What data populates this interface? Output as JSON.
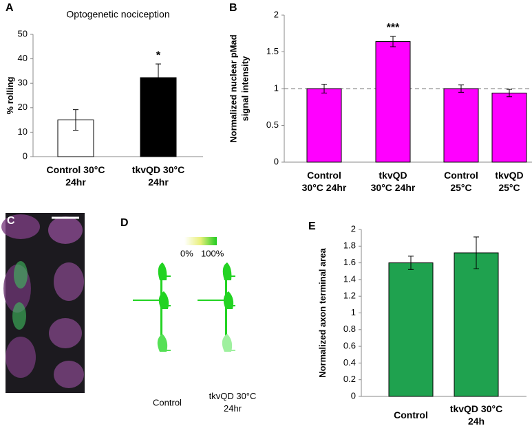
{
  "chart_data": [
    {
      "type": "bar",
      "title": "Optogenetic nociception",
      "ylabel": "% rolling",
      "categories": [
        "Control 30°C\n24hr",
        "tkvQD 30°C\n24hr"
      ],
      "values": [
        15,
        32.3
      ],
      "errors": [
        4.2,
        5.6
      ],
      "colors": [
        "#ffffff",
        "#000000"
      ],
      "significance": [
        null,
        "*"
      ],
      "ylim": [
        0,
        50
      ],
      "yticks": [
        0,
        10,
        20,
        30,
        40,
        50
      ],
      "grid": false
    },
    {
      "type": "bar",
      "ylabel": "Normalized  nuclear pMad\nsignal intensity",
      "categories": [
        "Control\n30°C 24hr",
        "tkvQD\n30°C 24hr",
        "Control\n25°C",
        "tkvQD\n25°C"
      ],
      "values": [
        1.0,
        1.64,
        1.0,
        0.94
      ],
      "errors": [
        0.06,
        0.07,
        0.05,
        0.05
      ],
      "colors": [
        "#ff00ff",
        "#ff00ff",
        "#ff00ff",
        "#ff00ff"
      ],
      "significance": [
        null,
        "***",
        null,
        null
      ],
      "reference_line": 1,
      "ylim": [
        0,
        2
      ],
      "yticks": [
        0,
        0.5,
        1,
        1.5,
        2
      ],
      "grid": false
    },
    {
      "type": "bar",
      "ylabel": "Normalized axon terminal area",
      "categories": [
        "Control",
        "tkvQD 30°C\n24h"
      ],
      "values": [
        1.6,
        1.72
      ],
      "errors": [
        0.08,
        0.19
      ],
      "colors": [
        "#1fa24f",
        "#1fa24f"
      ],
      "ylim": [
        0,
        2
      ],
      "yticks": [
        0,
        0.2,
        0.4,
        0.6,
        0.8,
        1,
        1.2,
        1.4,
        1.6,
        1.8,
        2
      ],
      "grid": false
    }
  ],
  "panel_labels": [
    "A",
    "B",
    "C",
    "D",
    "E"
  ],
  "diagram": {
    "scale_min": "0%",
    "scale_max": "100%",
    "labels": [
      "Control",
      "tkvQD 30°C\n24hr"
    ]
  }
}
